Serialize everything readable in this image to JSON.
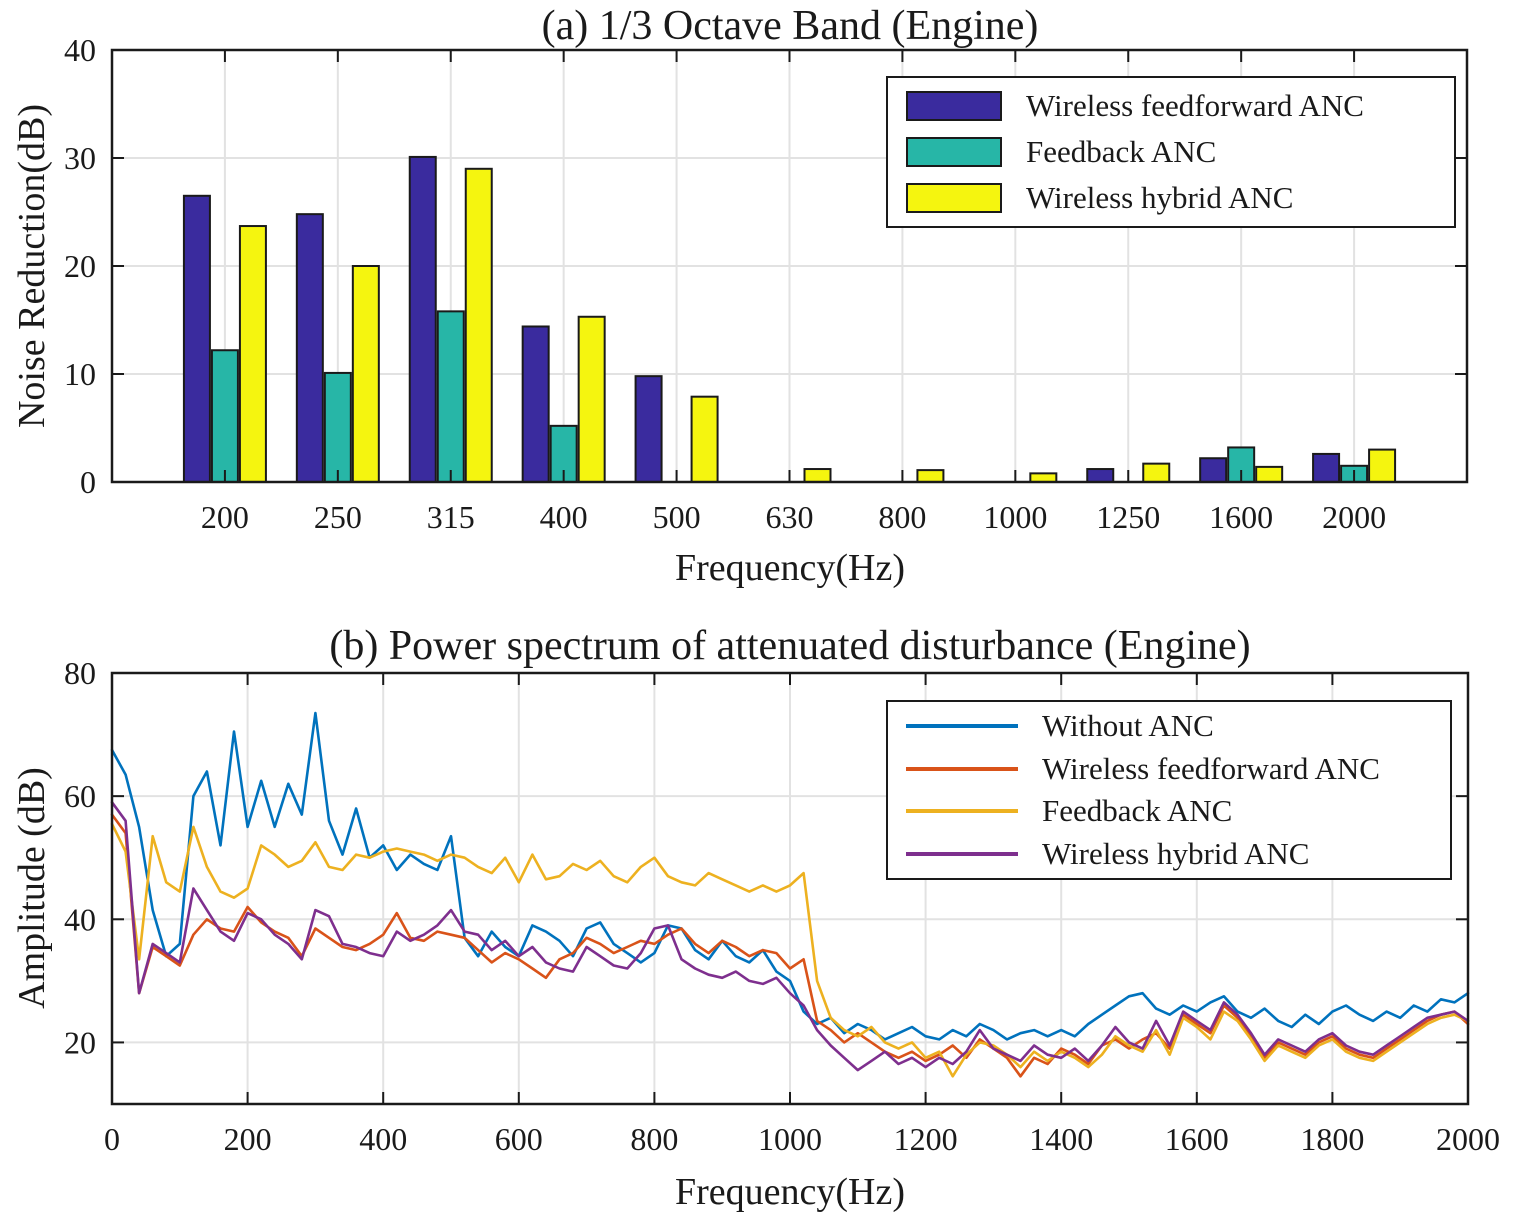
{
  "figure": {
    "background": "#ffffff",
    "axis_color": "#1a1a1a",
    "grid_color": "#e2e2e2"
  },
  "chart_data": [
    {
      "type": "bar",
      "title": "(a) 1/3 Octave Band (Engine)",
      "xlabel": "Frequency(Hz)",
      "ylabel": "Noise Reduction(dB)",
      "ylim": [
        0,
        40
      ],
      "yticks": [
        0,
        10,
        20,
        30,
        40
      ],
      "grid": "on",
      "legend_position": "top-right",
      "categories": [
        "200",
        "250",
        "315",
        "400",
        "500",
        "630",
        "800",
        "1000",
        "1250",
        "1600",
        "2000"
      ],
      "series": [
        {
          "name": "Wireless feedforward ANC",
          "color": "#3a2b9e",
          "values": [
            26.5,
            24.8,
            30.1,
            14.4,
            9.8,
            0,
            0,
            0,
            1.2,
            2.2,
            2.6
          ]
        },
        {
          "name": "Feedback ANC",
          "color": "#27b6a7",
          "values": [
            12.2,
            10.1,
            15.8,
            5.2,
            0,
            0,
            0,
            0,
            0,
            3.2,
            1.5
          ]
        },
        {
          "name": "Wireless hybrid ANC",
          "color": "#f5f50f",
          "values": [
            23.7,
            20.0,
            29.0,
            15.3,
            7.9,
            1.2,
            1.1,
            0.8,
            1.7,
            1.4,
            3.0
          ]
        }
      ]
    },
    {
      "type": "line",
      "title": "(b) Power spectrum of attenuated disturbance (Engine)",
      "xlabel": "Frequency(Hz)",
      "ylabel": "Amplitude (dB)",
      "xlim": [
        0,
        2000
      ],
      "xticks": [
        0,
        200,
        400,
        600,
        800,
        1000,
        1200,
        1400,
        1600,
        1800,
        2000
      ],
      "ylim": [
        10,
        80
      ],
      "yticks": [
        20,
        40,
        60,
        80
      ],
      "grid": "on",
      "legend_position": "top-right",
      "x_step": 20,
      "series": [
        {
          "name": "Without ANC",
          "color": "#0072bd",
          "values": [
            67.5,
            63.5,
            55,
            41.5,
            34,
            36,
            60,
            64,
            52,
            70.5,
            55,
            62.5,
            55,
            62,
            57,
            73.5,
            56,
            50.5,
            58,
            50,
            52,
            48,
            50.5,
            49,
            48,
            53.5,
            37,
            34,
            38,
            35.5,
            34,
            39,
            38,
            36.5,
            34,
            38.5,
            39.5,
            36,
            34.5,
            33,
            34.5,
            39,
            38.5,
            35,
            33.5,
            36.5,
            34,
            33,
            35,
            31.5,
            30,
            25,
            23,
            24,
            21.5,
            23,
            22,
            20.5,
            21.5,
            22.5,
            21,
            20.5,
            22,
            21,
            23,
            22,
            20.5,
            21.5,
            22,
            21,
            22,
            21,
            23,
            24.5,
            26,
            27.5,
            28,
            25.5,
            24.5,
            26,
            25,
            26.5,
            27.5,
            25,
            24,
            25.5,
            23.5,
            22.5,
            24.5,
            23,
            25,
            26,
            24.5,
            23.5,
            25,
            24,
            26,
            25,
            27,
            26.5,
            28
          ]
        },
        {
          "name": "Wireless feedforward ANC",
          "color": "#d95319",
          "values": [
            57,
            54,
            28,
            35.5,
            34,
            32.5,
            37.5,
            40,
            38.5,
            38,
            42,
            39.5,
            38,
            37,
            34,
            38.5,
            37,
            35.5,
            35,
            36,
            37.5,
            41,
            37,
            36.5,
            38,
            37.5,
            37,
            35,
            33,
            34.5,
            33.5,
            32,
            30.5,
            33.5,
            34.5,
            37,
            36,
            34.5,
            35.5,
            36.5,
            36,
            37.5,
            38.5,
            36,
            34.5,
            36.5,
            35.5,
            34,
            35,
            34.5,
            32,
            33.5,
            23.5,
            22,
            20,
            21.5,
            20,
            18.5,
            17.5,
            18.5,
            17,
            18,
            19.5,
            17.5,
            20.5,
            19,
            17.5,
            14.5,
            17.5,
            16.5,
            19,
            18,
            16.5,
            19.5,
            20.5,
            19,
            20.5,
            21.5,
            19,
            24.5,
            23,
            21.5,
            26,
            24,
            21,
            17.5,
            20,
            19,
            18,
            20,
            21,
            19,
            18,
            17.5,
            19,
            20.5,
            22,
            23.5,
            24.5,
            25,
            23
          ]
        },
        {
          "name": "Feedback ANC",
          "color": "#edb120",
          "values": [
            55.5,
            51,
            33.5,
            53.5,
            46,
            44.5,
            55,
            48.5,
            44.5,
            43.5,
            45,
            52,
            50.5,
            48.5,
            49.5,
            52.5,
            48.5,
            48,
            50.5,
            50,
            51,
            51.5,
            51,
            50.5,
            49.5,
            50.5,
            50,
            48.5,
            47.5,
            50,
            46,
            50.5,
            46.5,
            47,
            49,
            48,
            49.5,
            47,
            46,
            48.5,
            50,
            47,
            46,
            45.5,
            47.5,
            46.5,
            45.5,
            44.5,
            45.5,
            44.5,
            45.5,
            47.5,
            30,
            24,
            22,
            21,
            22.5,
            20,
            19,
            20,
            17.5,
            18.5,
            14.5,
            18,
            20,
            19.5,
            18,
            16,
            18.5,
            17,
            18.5,
            17.5,
            16,
            18,
            21,
            19.5,
            18.5,
            22,
            18,
            24,
            22.5,
            20.5,
            25,
            23.5,
            20.5,
            17,
            19.5,
            18.5,
            17.5,
            19.5,
            20.5,
            18.5,
            17.5,
            17,
            18.5,
            20,
            21.5,
            23,
            24,
            24.5,
            23.5
          ]
        },
        {
          "name": "Wireless hybrid ANC",
          "color": "#7e2f8e",
          "values": [
            59,
            56,
            28,
            36,
            34.5,
            33,
            45,
            41.5,
            38,
            36.5,
            41,
            40,
            37.5,
            36,
            33.5,
            41.5,
            40.5,
            36,
            35.5,
            34.5,
            34,
            38,
            36.5,
            37.5,
            39,
            41.5,
            38,
            37.5,
            35,
            36.5,
            34,
            35.5,
            33,
            32,
            31.5,
            35.5,
            34,
            32.5,
            32,
            34.5,
            38.5,
            39,
            33.5,
            32,
            31,
            30.5,
            31.5,
            30,
            29.5,
            30.5,
            28,
            26,
            22,
            19.5,
            17.5,
            15.5,
            17,
            18.5,
            16.5,
            17.5,
            16,
            17.5,
            16.5,
            18.5,
            22,
            19,
            18,
            17,
            19.5,
            18,
            17.5,
            19,
            17,
            19.5,
            22.5,
            20,
            19,
            23.5,
            19.5,
            25,
            23.5,
            22,
            26.5,
            24.5,
            21.5,
            18,
            20.5,
            19.5,
            18.5,
            20.5,
            21.5,
            19.5,
            18.5,
            18,
            19.5,
            21,
            22.5,
            24,
            24.5,
            25,
            23.5
          ]
        }
      ]
    }
  ]
}
